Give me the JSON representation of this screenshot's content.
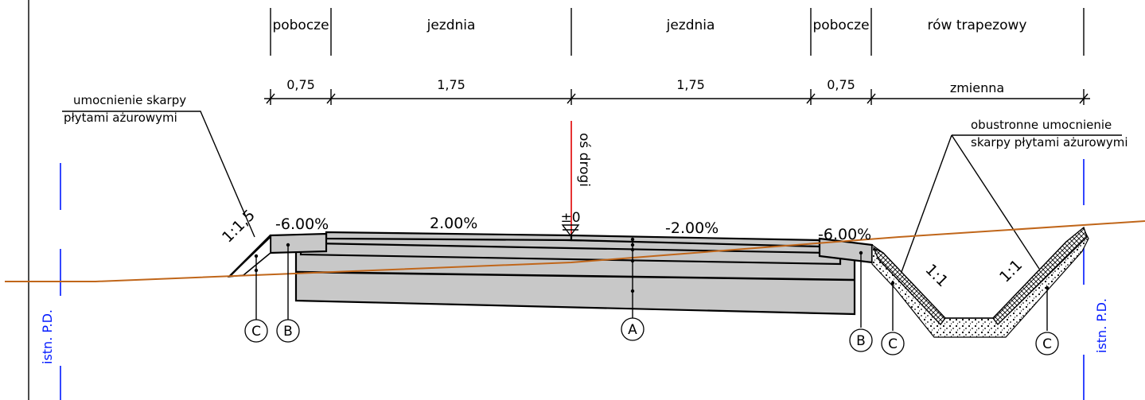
{
  "sections": {
    "left_shoulder": "pobocze",
    "left_lane": "jezdnia",
    "right_lane": "jezdnia",
    "right_shoulder": "pobocze",
    "ditch": "rów trapezowy"
  },
  "dimensions": {
    "left_shoulder": "0,75",
    "left_lane": "1,75",
    "right_lane": "1,75",
    "right_shoulder": "0,75",
    "ditch": "zmienna"
  },
  "slopes": {
    "left_shoulder": "-6.00%",
    "left_lane": "2.00%",
    "right_lane": "-2.00%",
    "right_shoulder": "-6.00%"
  },
  "ratios": {
    "left_embankment": "1:1,5",
    "ditch_left": "1:1",
    "ditch_right": "1:1"
  },
  "axis": {
    "label": "oś drogi",
    "elevation": "±0"
  },
  "annotations": {
    "left_line1": "umocnienie skarpy",
    "left_line2": "płytami ażurowymi",
    "right_line1": "obustronne umocnienie",
    "right_line2": "skarpy płytami ażurowymi"
  },
  "boundary": {
    "left": "istn. P.D.",
    "right": "istn. P.D."
  },
  "markers": {
    "c_left": "C",
    "b_left": "B",
    "a": "A",
    "b_right": "B",
    "c_ditch_left": "C",
    "c_ditch_right": "C"
  },
  "colors": {
    "terrain": "#c0661a",
    "axis_red": "#e00000",
    "boundary_blue": "#0018ff",
    "layer_fill": "#c8c8c8"
  }
}
